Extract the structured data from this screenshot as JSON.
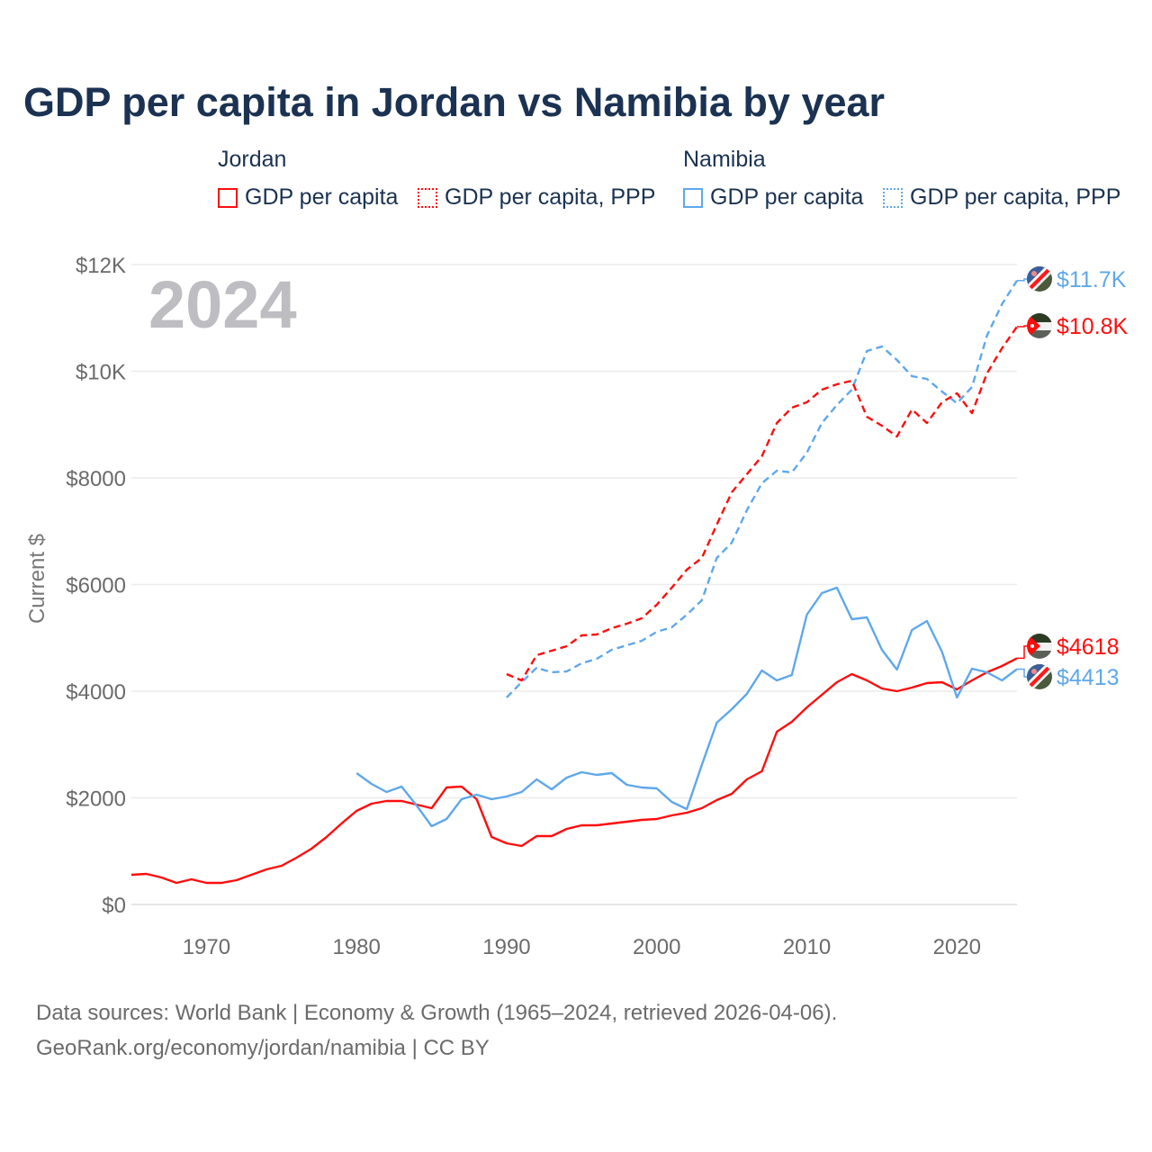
{
  "title": "GDP per capita in Jordan vs Namibia by year",
  "legend": {
    "groups": [
      {
        "country": "Jordan",
        "items": [
          "GDP per capita",
          "GDP per capita, PPP"
        ]
      },
      {
        "country": "Namibia",
        "items": [
          "GDP per capita",
          "GDP per capita, PPP"
        ]
      }
    ]
  },
  "year_label": "2024",
  "footer": {
    "line1": "Data sources: World Bank | Economy & Growth (1965–2024, retrieved 2026-04-06).",
    "line2": "GeoRank.org/economy/jordan/namibia | CC BY"
  },
  "colors": {
    "jordan": "#ff0d0d",
    "namibia": "#5fa8ea",
    "text": "#1b3252"
  },
  "chart_data": {
    "type": "line",
    "title": "GDP per capita in Jordan vs Namibia by year",
    "xlabel": "",
    "ylabel": "Current $",
    "xlim": [
      1965,
      2024
    ],
    "ylim": [
      0,
      12000
    ],
    "grid": true,
    "legend_position": "top",
    "xticks": [
      1970,
      1980,
      1990,
      2000,
      2010,
      2020
    ],
    "xtick_labels": [
      "1970",
      "1980",
      "1990",
      "2000",
      "2010",
      "2020"
    ],
    "yticks": [
      0,
      2000,
      4000,
      6000,
      8000,
      10000,
      12000
    ],
    "ytick_labels": [
      "$0",
      "$2000",
      "$4000",
      "$6000",
      "$8000",
      "$10K",
      "$12K"
    ],
    "series": [
      {
        "name": "Jordan GDP per capita",
        "country": "Jordan",
        "style": "solid",
        "end_label": "$4618",
        "start_year": 1965,
        "values": [
          557,
          574,
          506,
          405,
          472,
          405,
          405,
          456,
          557,
          658,
          726,
          878,
          1046,
          1266,
          1519,
          1755,
          1890,
          1941,
          1941,
          1873,
          1806,
          2194,
          2211,
          1975,
          1266,
          1148,
          1097,
          1283,
          1283,
          1418,
          1485,
          1485,
          1519,
          1553,
          1586,
          1603,
          1671,
          1722,
          1806,
          1958,
          2076,
          2346,
          2498,
          3240,
          3426,
          3696,
          3932,
          4169,
          4321,
          4203,
          4051,
          4000,
          4067,
          4152,
          4169,
          4034,
          4203,
          4354,
          4473,
          4618
        ]
      },
      {
        "name": "Jordan GDP per capita, PPP",
        "country": "Jordan",
        "style": "dashed",
        "end_label": "$10.8K",
        "start_year": 1990,
        "values": [
          4321,
          4203,
          4675,
          4760,
          4844,
          5046,
          5063,
          5181,
          5266,
          5367,
          5620,
          5941,
          6278,
          6498,
          7122,
          7730,
          8068,
          8405,
          9030,
          9316,
          9418,
          9654,
          9755,
          9823,
          9148,
          8979,
          8776,
          9283,
          9030,
          9418,
          9587,
          9215,
          9958,
          10430,
          10835
        ]
      },
      {
        "name": "Namibia GDP per capita",
        "country": "Namibia",
        "style": "solid",
        "end_label": "$4413",
        "start_year": 1980,
        "values": [
          2464,
          2262,
          2110,
          2211,
          1857,
          1468,
          1603,
          1975,
          2059,
          1975,
          2025,
          2110,
          2346,
          2160,
          2380,
          2481,
          2430,
          2464,
          2245,
          2194,
          2177,
          1924,
          1789,
          2616,
          3409,
          3662,
          3949,
          4388,
          4203,
          4304,
          5435,
          5840,
          5941,
          5350,
          5384,
          4776,
          4405,
          5148,
          5316,
          4743,
          3882,
          4422,
          4354,
          4203,
          4413
        ]
      },
      {
        "name": "Namibia GDP per capita, PPP",
        "country": "Namibia",
        "style": "dashed",
        "end_label": "$11.7K",
        "start_year": 1990,
        "values": [
          3882,
          4169,
          4439,
          4354,
          4371,
          4523,
          4608,
          4776,
          4861,
          4945,
          5114,
          5198,
          5434,
          5704,
          6498,
          6785,
          7392,
          7899,
          8135,
          8101,
          8473,
          9030,
          9367,
          9654,
          10380,
          10464,
          10211,
          9907,
          9857,
          9620,
          9400,
          9704,
          10667,
          11257,
          11700
        ]
      }
    ]
  }
}
